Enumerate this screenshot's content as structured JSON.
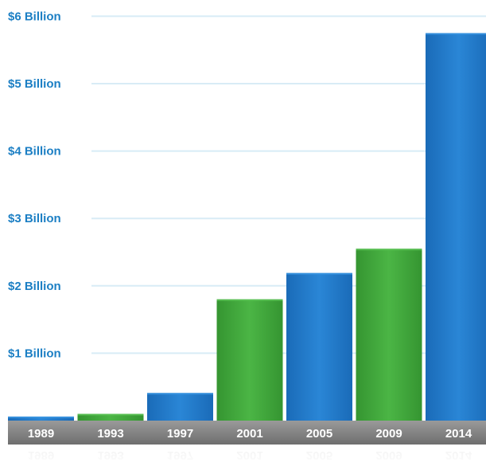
{
  "chart_data": {
    "type": "bar",
    "categories": [
      "1989",
      "1993",
      "1997",
      "2001",
      "2005",
      "2009",
      "2014"
    ],
    "values": [
      0.06,
      0.1,
      0.41,
      1.8,
      2.19,
      2.55,
      5.75
    ],
    "ylim": [
      0,
      6
    ],
    "ytick_values": [
      1,
      2,
      3,
      4,
      5,
      6
    ],
    "ytick_labels": [
      "$1 Billion",
      "$2 Billion",
      "$3 Billion",
      "$4 Billion",
      "$5 Billion",
      "$6 Billion"
    ],
    "grid": true,
    "legend": "none",
    "bar_colors": [
      "#1f78c8",
      "#3fa53a",
      "#1f78c8",
      "#3fa53a",
      "#1f78c8",
      "#3fa53a",
      "#1f78c8"
    ]
  },
  "colors": {
    "blue_bar": "#1f78c8",
    "green_bar": "#3fa53a",
    "ytick_label": "#1c7fc4",
    "grid": "#d8ecf6",
    "axis_band": "#8a8a8a",
    "xtick_label": "#ffffff"
  }
}
